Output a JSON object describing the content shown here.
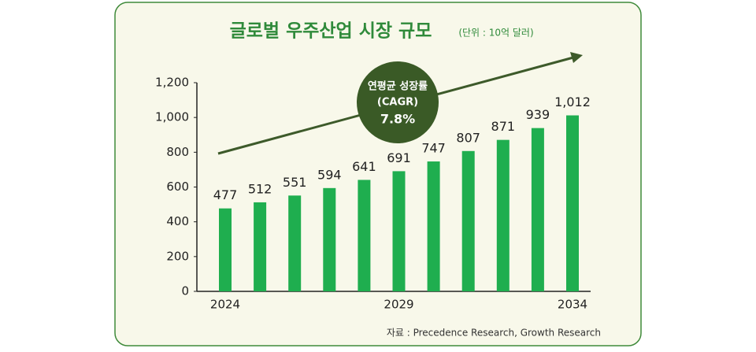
{
  "chart_data": {
    "type": "bar",
    "title": "글로벌 우주산업 시장 규모",
    "subtitle": "(단위 : 10억 달러)",
    "annotation": {
      "lines": [
        "연평균 성장률",
        "(CAGR)"
      ],
      "value": "7.8%"
    },
    "source": "자료 : Precedence Research, Growth Research",
    "categories": [
      "2024",
      null,
      null,
      null,
      null,
      "2029",
      null,
      null,
      null,
      null,
      "2034"
    ],
    "values": [
      477,
      512,
      551,
      594,
      641,
      691,
      747,
      807,
      871,
      939,
      1012
    ],
    "value_labels": [
      "477",
      "512",
      "551",
      "594",
      "641",
      "691",
      "747",
      "807",
      "871",
      "939",
      "1,012"
    ],
    "color": "#1fae4f",
    "ylim": [
      0,
      1200
    ],
    "yticks": [
      0,
      200,
      400,
      600,
      800,
      {
        "value": 1000,
        "label": "1,000"
      },
      {
        "value": 1200,
        "label": "1,200"
      }
    ],
    "grid": false
  }
}
